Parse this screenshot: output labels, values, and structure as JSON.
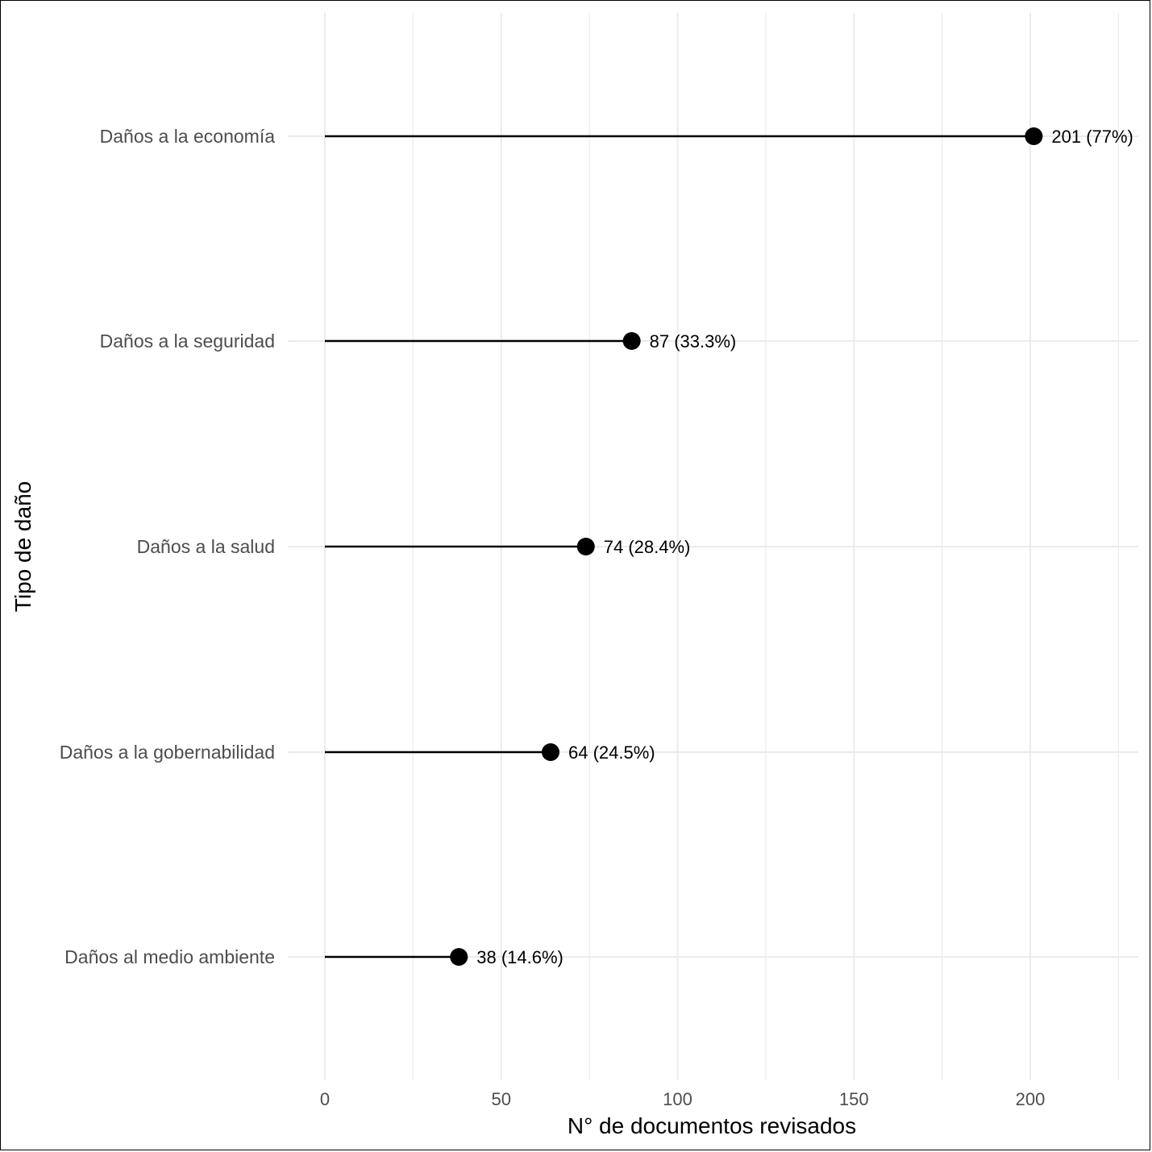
{
  "chart_data": {
    "type": "lollipop",
    "xlabel": "N° de documentos revisados",
    "ylabel": "Tipo de daño",
    "xlim": [
      0,
      225
    ],
    "x_ticks": [
      0,
      50,
      100,
      150,
      200
    ],
    "grid": true,
    "categories": [
      "Daños a la economía",
      "Daños a la seguridad",
      "Daños a la salud",
      "Daños a la gobernabilidad",
      "Daños al medio ambiente"
    ],
    "values": [
      201,
      87,
      74,
      64,
      38
    ],
    "data_labels": [
      "201 (77%)",
      "87 (33.3%)",
      "74 (28.4%)",
      "64 (24.5%)",
      "38 (14.6%)"
    ],
    "colors": {
      "mark": "#000000",
      "grid": "#ebebeb",
      "tick_text": "#4d4d4d"
    }
  }
}
